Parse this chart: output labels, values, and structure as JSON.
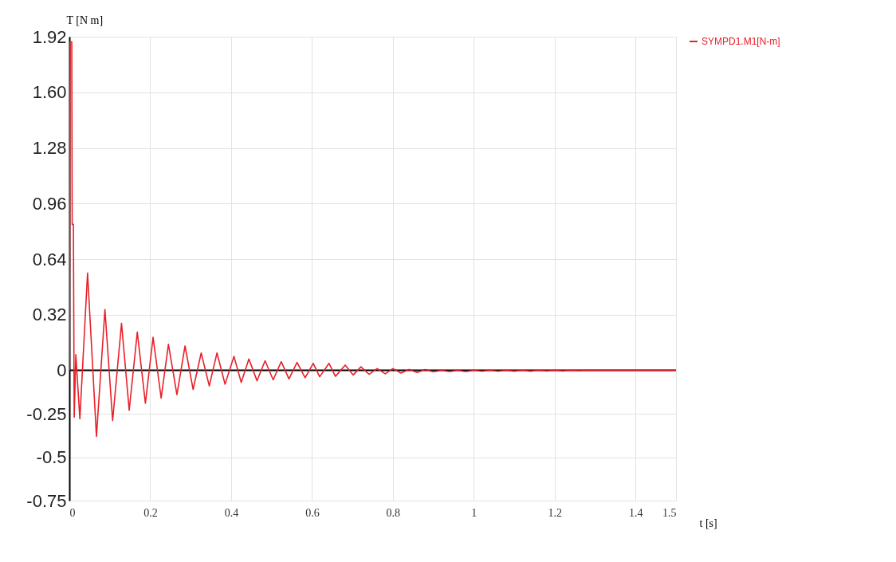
{
  "chart_data": {
    "type": "line",
    "xlabel": "t [s]",
    "ylabel": "T [N m]",
    "xlim": [
      0,
      1.5
    ],
    "xticks": [
      0,
      0.2,
      0.4,
      0.6,
      0.8,
      1,
      1.2,
      1.4,
      1.5
    ],
    "ylim": [
      -0.75,
      1.92
    ],
    "yticks": [
      -0.75,
      -0.5,
      -0.25,
      0,
      0.32,
      0.64,
      0.96,
      1.28,
      {
        "value": 1.6,
        "label": "1.60"
      },
      1.92
    ],
    "grid": true,
    "legend": "top right",
    "marker": "none",
    "line_style": "solid",
    "ref_lines": [
      {
        "axis": "y",
        "value": 0,
        "color": "#000000"
      }
    ],
    "series": [
      {
        "name": "SYMPD1.M1[N-m]",
        "color": "#e8202a",
        "x": [
          0,
          0.002,
          0.006,
          0.007,
          0.01,
          0.012,
          0.016,
          0.026,
          0.045,
          0.067,
          0.088,
          0.107,
          0.129,
          0.148,
          0.168,
          0.188,
          0.207,
          0.227,
          0.245,
          0.266,
          0.286,
          0.306,
          0.326,
          0.346,
          0.365,
          0.385,
          0.407,
          0.425,
          0.444,
          0.464,
          0.484,
          0.504,
          0.524,
          0.543,
          0.563,
          0.583,
          0.603,
          0.619,
          0.642,
          0.658,
          0.682,
          0.702,
          0.721,
          0.741,
          0.761,
          0.781,
          0.8,
          0.82,
          0.84,
          0.86,
          0.88,
          0.9,
          0.92,
          0.94,
          0.96,
          0.98,
          1.0,
          1.02,
          1.04,
          1.06,
          1.08,
          1.1,
          1.12,
          1.14,
          1.16,
          1.18,
          1.2,
          1.22,
          1.24,
          1.26,
          1.28,
          1.3,
          1.5
        ],
        "values": [
          0,
          1.89,
          1.89,
          0.84,
          0.84,
          -0.27,
          0.09,
          -0.28,
          0.56,
          -0.38,
          0.35,
          -0.29,
          0.27,
          -0.23,
          0.22,
          -0.19,
          0.19,
          -0.16,
          0.15,
          -0.14,
          0.14,
          -0.11,
          0.1,
          -0.09,
          0.1,
          -0.08,
          0.08,
          -0.07,
          0.065,
          -0.06,
          0.055,
          -0.055,
          0.05,
          -0.05,
          0.045,
          -0.043,
          0.04,
          -0.037,
          0.04,
          -0.035,
          0.03,
          -0.027,
          0.02,
          -0.023,
          0.01,
          -0.02,
          0.01,
          -0.016,
          0.005,
          -0.012,
          0.005,
          -0.009,
          0,
          -0.008,
          0,
          -0.008,
          0,
          -0.006,
          0,
          -0.006,
          0,
          -0.005,
          0,
          -0.005,
          0,
          -0.004,
          0,
          -0.004,
          0,
          -0.003,
          0,
          0,
          0
        ]
      }
    ]
  }
}
